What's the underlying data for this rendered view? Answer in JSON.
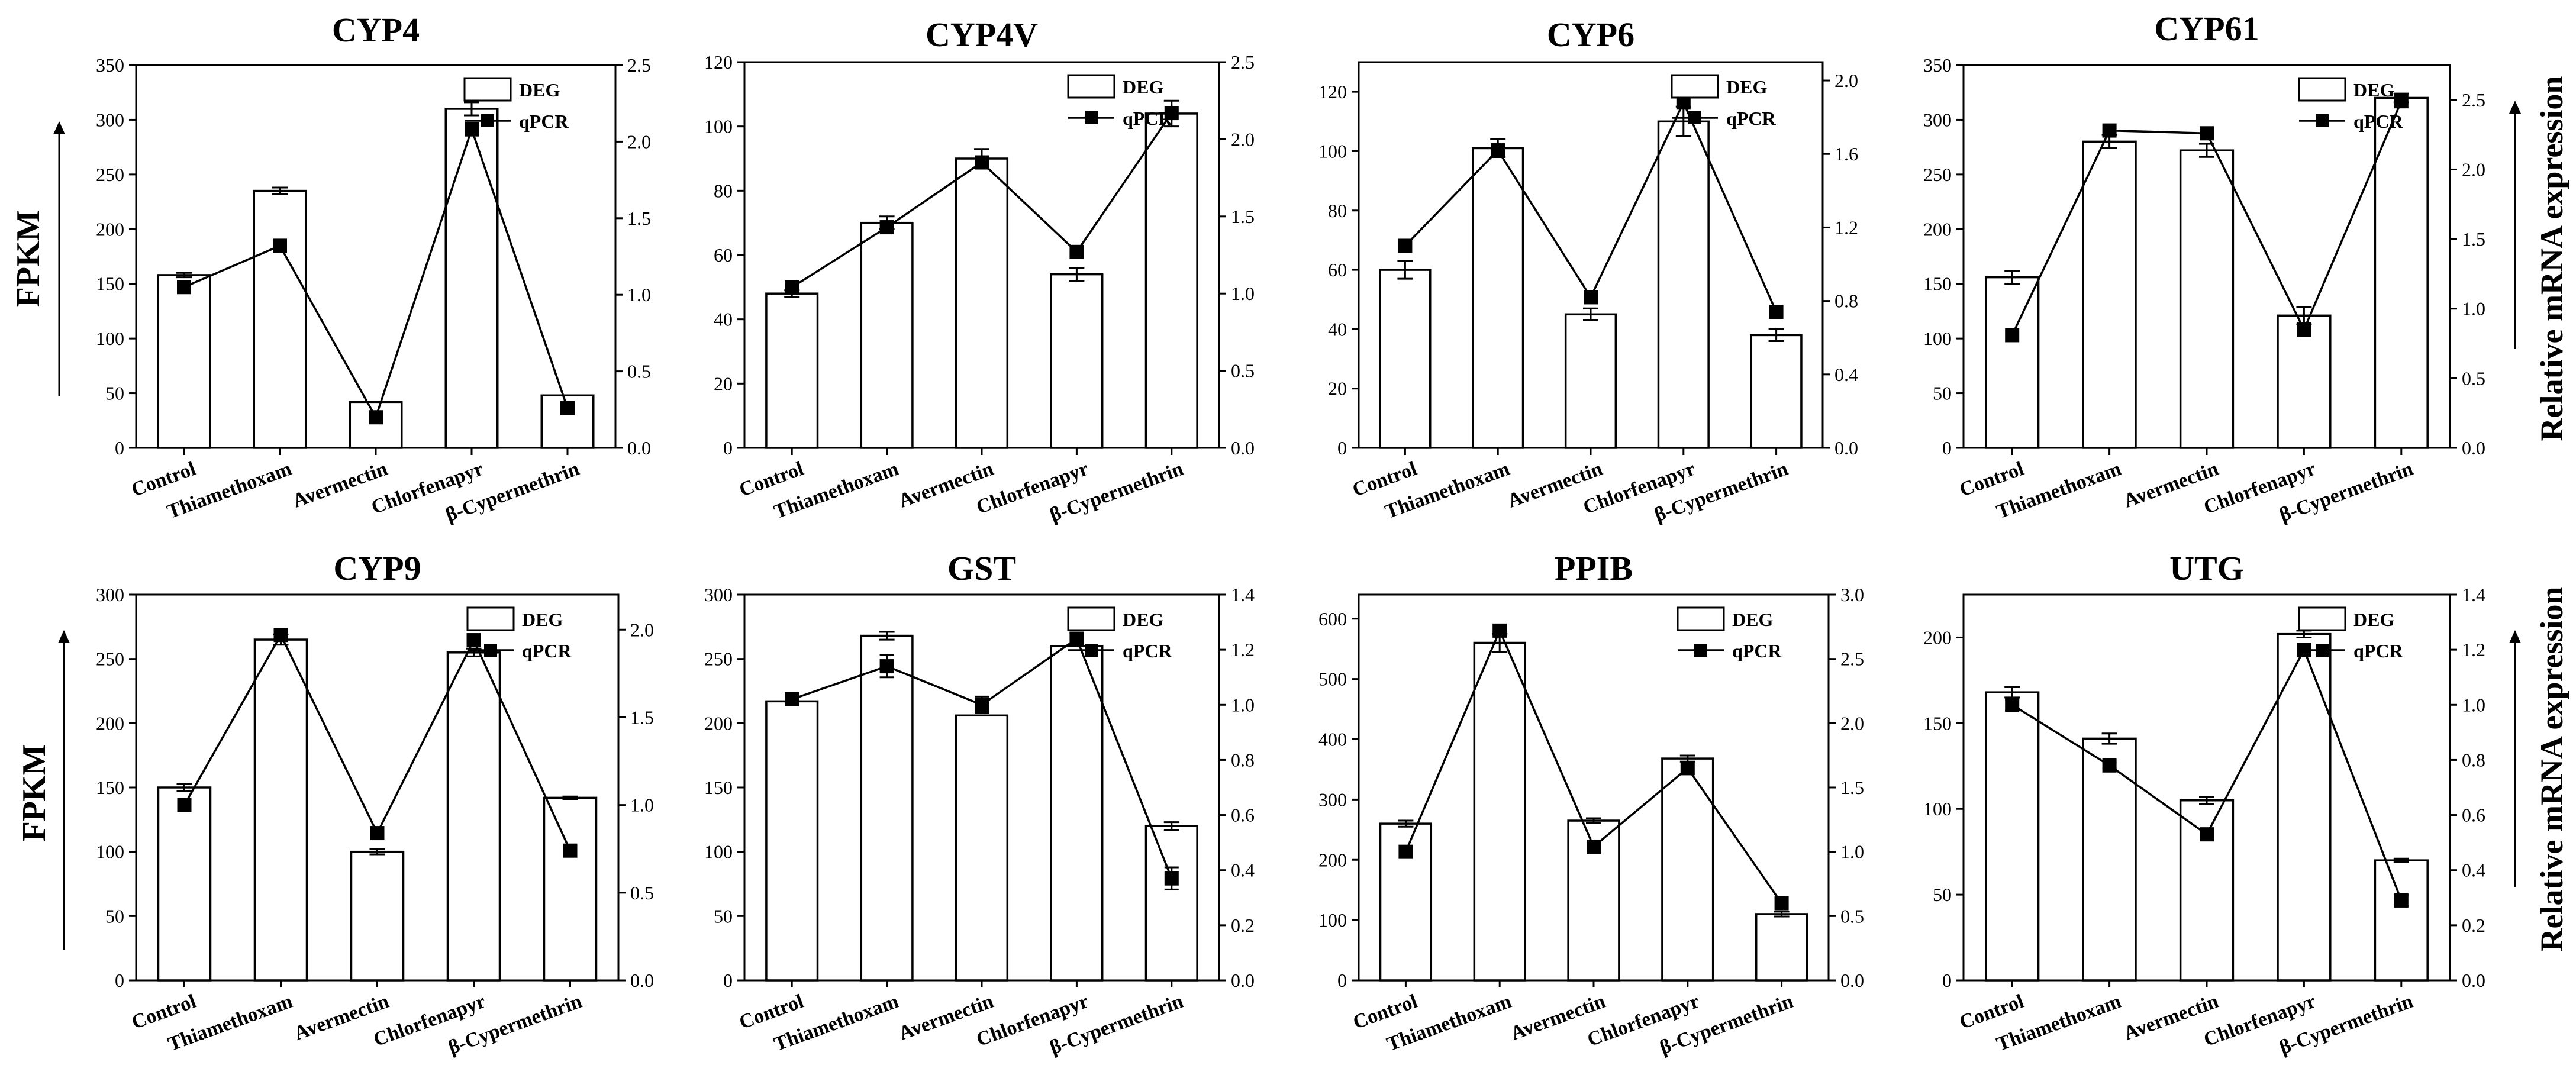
{
  "figure": {
    "left_axis_label": "FPKM",
    "right_axis_label": "Relative mRNA expression",
    "legend": {
      "bar": "DEG",
      "line": "qPCR"
    }
  },
  "chart_data": [
    {
      "type": "bar+line",
      "title": "CYP4",
      "categories": [
        "Control",
        "Thiamethoxam",
        "Avermectin",
        "Chlorfenapyr",
        "β-Cypermethrin"
      ],
      "series": [
        {
          "name": "DEG",
          "axis": "left",
          "values": [
            158,
            235,
            42,
            310,
            48
          ],
          "errors": [
            2,
            3,
            0,
            6,
            0
          ]
        },
        {
          "name": "qPCR",
          "axis": "right",
          "values": [
            1.05,
            1.32,
            0.2,
            2.08,
            0.26
          ],
          "errors": [
            0,
            0,
            0,
            0,
            0
          ]
        }
      ],
      "ylim": [
        0,
        350
      ],
      "yticks": [
        0,
        50,
        100,
        150,
        200,
        250,
        300,
        350
      ],
      "y2lim": [
        0,
        2.5
      ],
      "y2ticks": [
        "0.0",
        "0.5",
        "1.0",
        "1.5",
        "2.0",
        "2.5"
      ]
    },
    {
      "type": "bar+line",
      "title": "CYP4V",
      "categories": [
        "Control",
        "Thiamethoxam",
        "Avermectin",
        "Chlorfenapyr",
        "β-Cypermethrin"
      ],
      "series": [
        {
          "name": "DEG",
          "axis": "left",
          "values": [
            48,
            70,
            90,
            54,
            104
          ],
          "errors": [
            1,
            2,
            3,
            2,
            4
          ]
        },
        {
          "name": "qPCR",
          "axis": "right",
          "values": [
            1.04,
            1.43,
            1.85,
            1.27,
            2.17
          ],
          "errors": [
            0,
            0,
            0,
            0,
            0
          ]
        }
      ],
      "ylim": [
        0,
        120
      ],
      "yticks": [
        0,
        20,
        40,
        60,
        80,
        100,
        120
      ],
      "y2lim": [
        0,
        2.5
      ],
      "y2ticks": [
        "0.0",
        "0.5",
        "1.0",
        "1.5",
        "2.0",
        "2.5"
      ]
    },
    {
      "type": "bar+line",
      "title": "CYP6",
      "categories": [
        "Control",
        "Thiamethoxam",
        "Avermectin",
        "Chlorfenapyr",
        "β-Cypermethrin"
      ],
      "series": [
        {
          "name": "DEG",
          "axis": "left",
          "values": [
            60,
            101,
            45,
            110,
            38
          ],
          "errors": [
            3,
            3,
            2,
            5,
            2
          ]
        },
        {
          "name": "qPCR",
          "axis": "right",
          "values": [
            1.1,
            1.62,
            0.82,
            1.88,
            0.74
          ],
          "errors": [
            0,
            0,
            0,
            0,
            0
          ]
        }
      ],
      "ylim": [
        0,
        130
      ],
      "yticks": [
        0,
        20,
        40,
        60,
        80,
        100,
        120
      ],
      "y2lim": [
        0,
        2.1
      ],
      "y2ticks": [
        "0.0",
        "0.4",
        "0.8",
        "1.2",
        "1.6",
        "2.0"
      ]
    },
    {
      "type": "bar+line",
      "title": "CYP61",
      "categories": [
        "Control",
        "Thiamethoxam",
        "Avermectin",
        "Chlorfenapyr",
        "β-Cypermethrin"
      ],
      "series": [
        {
          "name": "DEG",
          "axis": "left",
          "values": [
            156,
            280,
            272,
            121,
            320
          ],
          "errors": [
            6,
            6,
            6,
            8,
            4
          ]
        },
        {
          "name": "qPCR",
          "axis": "right",
          "values": [
            0.81,
            2.28,
            2.26,
            0.85,
            2.49
          ],
          "errors": [
            0,
            0,
            0,
            0,
            0
          ]
        }
      ],
      "ylim": [
        0,
        350
      ],
      "yticks": [
        0,
        50,
        100,
        150,
        200,
        250,
        300,
        350
      ],
      "y2lim": [
        0,
        2.75
      ],
      "y2ticks": [
        "0.0",
        "0.5",
        "1.0",
        "1.5",
        "2.0",
        "2.5"
      ]
    },
    {
      "type": "bar+line",
      "title": "CYP9",
      "categories": [
        "Control",
        "Thiamethoxam",
        "Avermectin",
        "Chlorfenapyr",
        "β-Cypermethrin"
      ],
      "series": [
        {
          "name": "DEG",
          "axis": "left",
          "values": [
            150,
            265,
            100,
            255,
            142
          ],
          "errors": [
            3,
            4,
            2,
            3,
            1
          ]
        },
        {
          "name": "qPCR",
          "axis": "right",
          "values": [
            1.0,
            1.97,
            0.84,
            1.94,
            0.74
          ],
          "errors": [
            0,
            0,
            0,
            0,
            0
          ]
        }
      ],
      "ylim": [
        0,
        300
      ],
      "yticks": [
        0,
        50,
        100,
        150,
        200,
        250,
        300
      ],
      "y2lim": [
        0,
        2.2
      ],
      "y2ticks": [
        "0.0",
        "0.5",
        "1.0",
        "1.5",
        "2.0"
      ]
    },
    {
      "type": "bar+line",
      "title": "GST",
      "categories": [
        "Control",
        "Thiamethoxam",
        "Avermectin",
        "Chlorfenapyr",
        "β-Cypermethrin"
      ],
      "series": [
        {
          "name": "DEG",
          "axis": "left",
          "values": [
            217,
            268,
            206,
            260,
            120
          ],
          "errors": [
            0,
            3,
            0,
            0,
            3
          ]
        },
        {
          "name": "qPCR",
          "axis": "right",
          "values": [
            1.02,
            1.14,
            1.0,
            1.24,
            0.37
          ],
          "errors": [
            0,
            0.04,
            0.03,
            0.02,
            0.04
          ]
        }
      ],
      "ylim": [
        0,
        300
      ],
      "yticks": [
        0,
        50,
        100,
        150,
        200,
        250,
        300
      ],
      "y2lim": [
        0,
        1.4
      ],
      "y2ticks": [
        "0.0",
        "0.2",
        "0.4",
        "0.6",
        "0.8",
        "1.0",
        "1.2",
        "1.4"
      ]
    },
    {
      "type": "bar+line",
      "title": "PPIB",
      "categories": [
        "Control",
        "Thiamethoxam",
        "Avermectin",
        "Chlorfenapyr",
        "β-Cypermethrin"
      ],
      "series": [
        {
          "name": "DEG",
          "axis": "left",
          "values": [
            260,
            560,
            265,
            368,
            110
          ],
          "errors": [
            5,
            15,
            4,
            5,
            4
          ]
        },
        {
          "name": "qPCR",
          "axis": "right",
          "values": [
            1.0,
            2.72,
            1.04,
            1.65,
            0.6
          ],
          "errors": [
            0,
            0,
            0,
            0,
            0
          ]
        }
      ],
      "ylim": [
        0,
        640
      ],
      "yticks": [
        0,
        100,
        200,
        300,
        400,
        500,
        600
      ],
      "y2lim": [
        0,
        3.0
      ],
      "y2ticks": [
        "0.0",
        "0.5",
        "1.0",
        "1.5",
        "2.0",
        "2.5",
        "3.0"
      ]
    },
    {
      "type": "bar+line",
      "title": "UTG",
      "categories": [
        "Control",
        "Thiamethoxam",
        "Avermectin",
        "Chlorfenapyr",
        "β-Cypermethrin"
      ],
      "series": [
        {
          "name": "DEG",
          "axis": "left",
          "values": [
            168,
            141,
            105,
            202,
            70
          ],
          "errors": [
            3,
            3,
            2,
            2,
            1
          ]
        },
        {
          "name": "qPCR",
          "axis": "right",
          "values": [
            1.0,
            0.78,
            0.53,
            1.2,
            0.29
          ],
          "errors": [
            0.02,
            0.01,
            0.02,
            0,
            0.02
          ]
        }
      ],
      "ylim": [
        0,
        225
      ],
      "yticks": [
        0,
        50,
        100,
        150,
        200
      ],
      "y2lim": [
        0,
        1.4
      ],
      "y2ticks": [
        "0.0",
        "0.2",
        "0.4",
        "0.6",
        "0.8",
        "1.0",
        "1.2",
        "1.4"
      ]
    }
  ]
}
